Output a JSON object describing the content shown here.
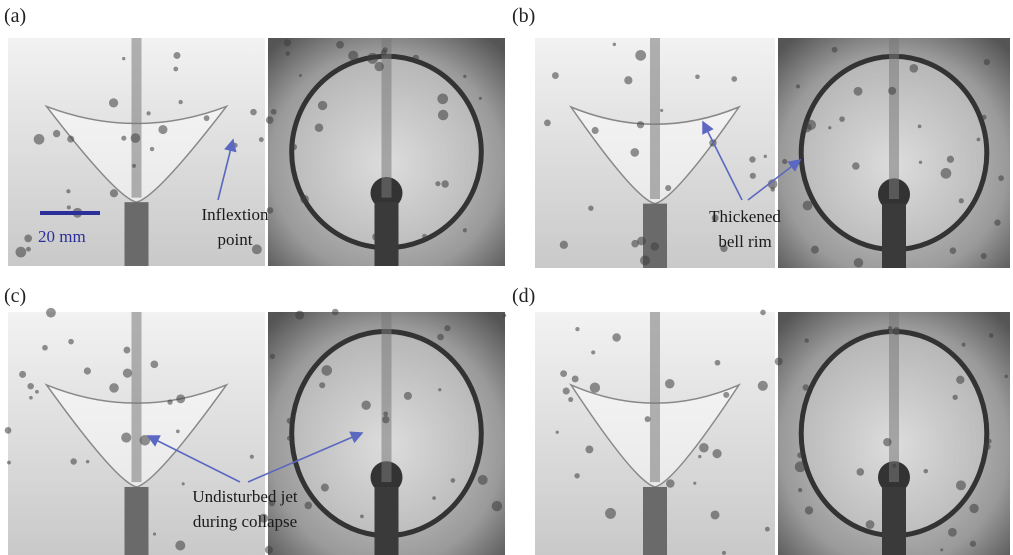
{
  "panels": [
    {
      "label": "(a)",
      "annotation": [
        "Inflextion",
        "point"
      ],
      "scale_bar": "20 mm"
    },
    {
      "label": "(b)",
      "annotation": [
        "Thickened",
        "bell rim"
      ]
    },
    {
      "label": "(c)",
      "annotation": [
        "Undisturbed jet",
        "during collapse"
      ]
    },
    {
      "label": "(d)"
    }
  ]
}
